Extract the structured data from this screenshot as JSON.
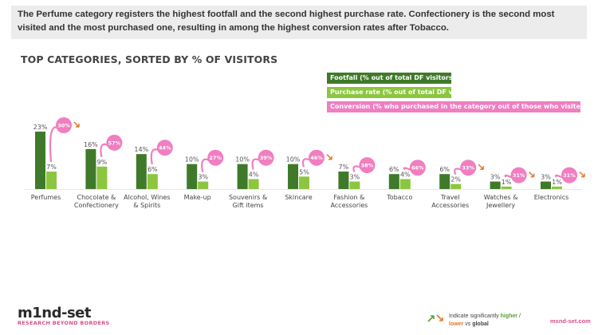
{
  "banner": {
    "text": "The Perfume category registers the highest footfall and the second highest purchase rate. Confectionery is the second most visited and the most purchased one, resulting in among the highest conversion rates after Tobacco."
  },
  "section_title": "TOP CATEGORIES, SORTED BY % OF VISITORS",
  "legend": [
    {
      "label": "Footfall (% out of total DF visitors)",
      "color": "#3f7a2a"
    },
    {
      "label": "Purchase rate (% out of total DF visitors)",
      "color": "#8cc63f"
    },
    {
      "label": "Conversion (% who purchased in the category out of those who visited it)",
      "color": "#f07ec0"
    }
  ],
  "chart_data": {
    "type": "bar",
    "title": "TOP CATEGORIES, SORTED BY % OF VISITORS",
    "categories": [
      [
        "Perfumes"
      ],
      [
        "Chocolate &",
        "Confectionery"
      ],
      [
        "Alcohol, Wines",
        "& Spirits"
      ],
      [
        "Make-up"
      ],
      [
        "Souvenirs &",
        "Gift items"
      ],
      [
        "Skincare"
      ],
      [
        "Fashion &",
        "Accessories"
      ],
      [
        "Tobacco"
      ],
      [
        "Travel",
        "Accessories"
      ],
      [
        "Watches &",
        "Jewellery"
      ],
      [
        "Electronics"
      ]
    ],
    "series": [
      {
        "name": "Footfall (% out of total DF visitors)",
        "values": [
          23,
          16,
          14,
          10,
          10,
          10,
          7,
          6,
          6,
          3,
          3
        ],
        "labels": [
          "23%",
          "16%",
          "14%",
          "10%",
          "10%",
          "10%",
          "7%",
          "6%",
          "6%",
          "3%",
          "3%"
        ],
        "color": "#3f7a2a"
      },
      {
        "name": "Purchase rate (% out of total DF visitors)",
        "values": [
          7,
          9,
          6,
          3,
          4,
          5,
          3,
          4,
          2,
          1,
          1
        ],
        "labels": [
          "7%",
          "9%",
          "6%",
          "3%",
          "4%",
          "5%",
          "3%",
          "4%",
          "2%",
          "1%",
          "1%"
        ],
        "color": "#8cc63f"
      },
      {
        "name": "Conversion (% who purchased in the category out of those who visited it)",
        "values": [
          30,
          57,
          44,
          27,
          39,
          46,
          38,
          66,
          33,
          31,
          31
        ],
        "labels": [
          "30%",
          "57%",
          "44%",
          "27%",
          "39%",
          "46%",
          "38%",
          "66%",
          "33%",
          "31%",
          "31%"
        ],
        "color": "#f07ec0"
      }
    ],
    "significance": [
      "lower",
      "",
      "",
      "",
      "",
      "lower",
      "",
      "",
      "lower",
      "lower",
      "lower"
    ],
    "ylim": [
      0,
      25
    ]
  },
  "footer": {
    "logo_text": "m1nd-set",
    "tagline": "RESEARCH BEYOND BORDERS",
    "note_prefix": "Indicate significantly",
    "note_higher": "higher",
    "note_sep": "/",
    "note_lower": "lower",
    "note_vs": "vs",
    "note_global": "global",
    "site": "msnd-set.com",
    "higher_color": "#5aa02c",
    "lower_color": "#e07a2b"
  }
}
